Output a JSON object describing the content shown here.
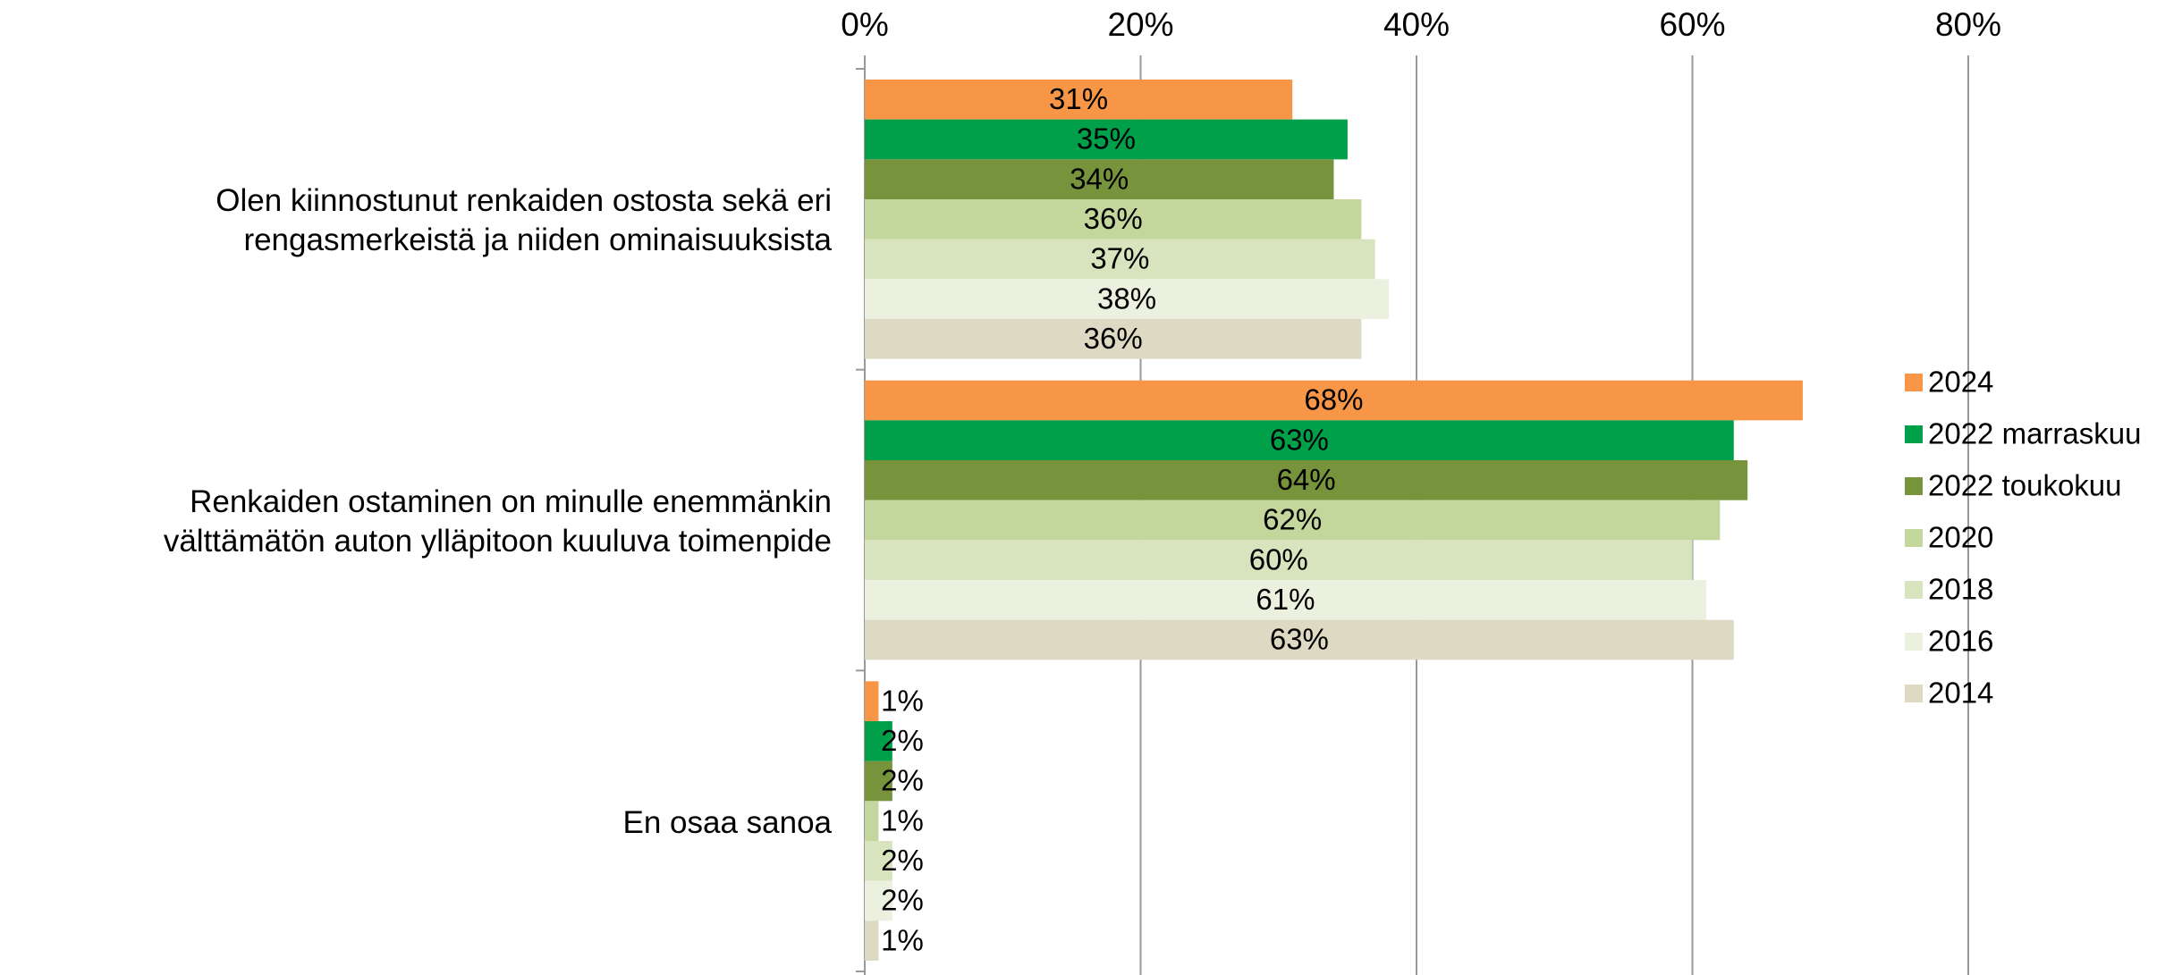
{
  "chart_data": {
    "type": "bar",
    "orientation": "horizontal",
    "categories": [
      "Olen kiinnostunut renkaiden ostosta sekä eri\nrengasmerkeistä ja niiden ominaisuuksista",
      "Renkaiden ostaminen on minulle enemmänkin\nvälttämätön auton ylläpitoon kuuluva toimenpide",
      "En osaa sanoa"
    ],
    "series": [
      {
        "name": "2024",
        "color": "#f79646",
        "values": [
          31,
          68,
          1
        ],
        "value_labels": [
          "31%",
          "68%",
          "1%"
        ]
      },
      {
        "name": "2022 marraskuu",
        "color": "#00a04b",
        "values": [
          35,
          63,
          2
        ],
        "value_labels": [
          "35%",
          "63%",
          "2%"
        ]
      },
      {
        "name": "2022 toukokuu",
        "color": "#77933c",
        "values": [
          34,
          64,
          2
        ],
        "value_labels": [
          "34%",
          "64%",
          "2%"
        ]
      },
      {
        "name": "2020",
        "color": "#c3d69b",
        "values": [
          36,
          62,
          1
        ],
        "value_labels": [
          "36%",
          "62%",
          "1%"
        ]
      },
      {
        "name": "2018",
        "color": "#d7e4bd",
        "values": [
          37,
          60,
          2
        ],
        "value_labels": [
          "37%",
          "60%",
          "2%"
        ]
      },
      {
        "name": "2016",
        "color": "#ebf1de",
        "values": [
          38,
          61,
          2
        ],
        "value_labels": [
          "38%",
          "61%",
          "2%"
        ]
      },
      {
        "name": "2014",
        "color": "#ddd9c3",
        "values": [
          36,
          63,
          1
        ],
        "value_labels": [
          "36%",
          "63%",
          "1%"
        ]
      }
    ],
    "xlim": [
      0,
      80
    ],
    "xticks": [
      {
        "value": 0,
        "label": "0%"
      },
      {
        "value": 20,
        "label": "20%"
      },
      {
        "value": 40,
        "label": "40%"
      },
      {
        "value": 60,
        "label": "60%"
      },
      {
        "value": 80,
        "label": "80%"
      }
    ],
    "grid": true,
    "legend": "right"
  }
}
